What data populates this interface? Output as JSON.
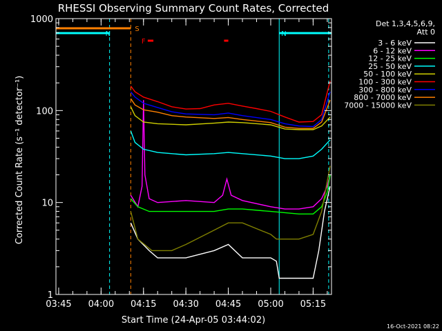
{
  "chart_data": {
    "type": "line",
    "title": "RHESSI Observing Summary Count Rates, Corrected",
    "xlabel": "Start Time (24-Apr-05 03:44:02)",
    "ylabel": "Corrected Count Rate (s⁻¹ detector⁻¹)",
    "y_scale": "log",
    "ylim": [
      1,
      1000
    ],
    "xlim": [
      "03:44:02",
      "05:21:30"
    ],
    "x_ticks": [
      "03:45",
      "04:00",
      "04:15",
      "04:30",
      "04:45",
      "05:00",
      "05:15"
    ],
    "y_ticks": [
      "1",
      "10",
      "100",
      "1000"
    ],
    "legend_position": "top-right",
    "legend_header": [
      "Det 1,3,4,5,6,9,",
      "Att 0"
    ],
    "flags": [
      {
        "label": "S",
        "color": "#ff8000",
        "start": "03:44:02",
        "end": "04:10:30"
      },
      {
        "label": "N",
        "color": "#00ffff",
        "start": "03:44:02",
        "end": "04:03:00"
      },
      {
        "label": "N",
        "color": "#00ffff",
        "start": "05:03:00",
        "end": "05:21:30"
      },
      {
        "label": "F",
        "color": "#ff0000",
        "start": "04:16:30",
        "end": "04:18:30"
      },
      {
        "label": "",
        "color": "#ff0000",
        "start": "04:43:30",
        "end": "04:45:00"
      }
    ],
    "vlines": [
      {
        "time": "04:03:00",
        "color": "#00ffff",
        "style": "dashed"
      },
      {
        "time": "04:10:30",
        "color": "#ff8000",
        "style": "dashed"
      },
      {
        "time": "05:03:00",
        "color": "#00ffff",
        "style": "solid"
      },
      {
        "time": "05:20:30",
        "color": "#00ffff",
        "style": "dashed"
      }
    ],
    "series": [
      {
        "name": "3 - 6 keV",
        "color": "#ffffff",
        "points": [
          [
            "04:10:30",
            6
          ],
          [
            "04:13:00",
            4
          ],
          [
            "04:17:00",
            3
          ],
          [
            "04:20:00",
            2.5
          ],
          [
            "04:30:00",
            2.5
          ],
          [
            "04:40:00",
            3
          ],
          [
            "04:45:00",
            3.5
          ],
          [
            "04:50:00",
            2.5
          ],
          [
            "05:00:00",
            2.5
          ],
          [
            "05:02:00",
            2.3
          ],
          [
            "05:03:00",
            1.5
          ],
          [
            "05:10:00",
            1.5
          ],
          [
            "05:15:00",
            1.5
          ],
          [
            "05:17:00",
            3
          ],
          [
            "05:19:00",
            8
          ],
          [
            "05:21:00",
            15
          ]
        ]
      },
      {
        "name": "6 - 12 keV",
        "color": "#ff00ff",
        "points": [
          [
            "04:10:30",
            12
          ],
          [
            "04:13:00",
            9
          ],
          [
            "04:14:30",
            15
          ],
          [
            "04:15:00",
            130
          ],
          [
            "04:15:30",
            20
          ],
          [
            "04:17:00",
            11
          ],
          [
            "04:20:00",
            10
          ],
          [
            "04:30:00",
            10.5
          ],
          [
            "04:40:00",
            10
          ],
          [
            "04:43:00",
            12
          ],
          [
            "04:44:30",
            18
          ],
          [
            "04:46:00",
            12
          ],
          [
            "04:50:00",
            10.5
          ],
          [
            "05:00:00",
            9
          ],
          [
            "05:05:00",
            8.5
          ],
          [
            "05:10:00",
            8.5
          ],
          [
            "05:15:00",
            9
          ],
          [
            "05:18:00",
            11
          ],
          [
            "05:20:00",
            15
          ],
          [
            "05:21:00",
            20
          ]
        ]
      },
      {
        "name": "12 - 25 keV",
        "color": "#00ff00",
        "points": [
          [
            "04:10:30",
            11
          ],
          [
            "04:13:00",
            9
          ],
          [
            "04:17:00",
            8
          ],
          [
            "04:25:00",
            8
          ],
          [
            "04:30:00",
            8
          ],
          [
            "04:40:00",
            8
          ],
          [
            "04:45:00",
            8.5
          ],
          [
            "04:50:00",
            8.5
          ],
          [
            "05:00:00",
            8
          ],
          [
            "05:10:00",
            7.5
          ],
          [
            "05:15:00",
            7.5
          ],
          [
            "05:18:00",
            9
          ],
          [
            "05:20:00",
            13
          ],
          [
            "05:21:00",
            20
          ]
        ]
      },
      {
        "name": "25 - 50 keV",
        "color": "#00ffff",
        "points": [
          [
            "04:10:30",
            60
          ],
          [
            "04:12:00",
            45
          ],
          [
            "04:15:00",
            38
          ],
          [
            "04:20:00",
            35
          ],
          [
            "04:30:00",
            33
          ],
          [
            "04:40:00",
            34
          ],
          [
            "04:45:00",
            35
          ],
          [
            "04:50:00",
            34
          ],
          [
            "05:00:00",
            32
          ],
          [
            "05:05:00",
            30
          ],
          [
            "05:10:00",
            30
          ],
          [
            "05:15:00",
            32
          ],
          [
            "05:18:00",
            38
          ],
          [
            "05:21:00",
            48
          ]
        ]
      },
      {
        "name": "50 - 100 keV",
        "color": "#d0d000",
        "points": [
          [
            "04:10:30",
            110
          ],
          [
            "04:12:00",
            88
          ],
          [
            "04:15:00",
            75
          ],
          [
            "04:20:00",
            72
          ],
          [
            "04:30:00",
            70
          ],
          [
            "04:40:00",
            73
          ],
          [
            "04:45:00",
            75
          ],
          [
            "04:50:00",
            74
          ],
          [
            "05:00:00",
            70
          ],
          [
            "05:05:00",
            63
          ],
          [
            "05:10:00",
            62
          ],
          [
            "05:15:00",
            62
          ],
          [
            "05:18:00",
            68
          ],
          [
            "05:21:00",
            85
          ]
        ]
      },
      {
        "name": "100 - 300 keV",
        "color": "#ff0000",
        "points": [
          [
            "04:10:30",
            185
          ],
          [
            "04:12:00",
            160
          ],
          [
            "04:15:00",
            140
          ],
          [
            "04:20:00",
            125
          ],
          [
            "04:25:00",
            110
          ],
          [
            "04:30:00",
            104
          ],
          [
            "04:35:00",
            105
          ],
          [
            "04:40:00",
            115
          ],
          [
            "04:45:00",
            120
          ],
          [
            "04:50:00",
            112
          ],
          [
            "04:55:00",
            105
          ],
          [
            "05:00:00",
            98
          ],
          [
            "05:05:00",
            85
          ],
          [
            "05:10:00",
            75
          ],
          [
            "05:15:00",
            76
          ],
          [
            "05:18:00",
            90
          ],
          [
            "05:21:00",
            210
          ]
        ]
      },
      {
        "name": "300 - 800 keV",
        "color": "#0000ff",
        "points": [
          [
            "04:10:30",
            160
          ],
          [
            "04:12:00",
            140
          ],
          [
            "04:15:00",
            120
          ],
          [
            "04:20:00",
            108
          ],
          [
            "04:25:00",
            97
          ],
          [
            "04:30:00",
            92
          ],
          [
            "04:40:00",
            90
          ],
          [
            "04:45:00",
            94
          ],
          [
            "04:50:00",
            88
          ],
          [
            "05:00:00",
            80
          ],
          [
            "05:05:00",
            72
          ],
          [
            "05:10:00",
            68
          ],
          [
            "05:15:00",
            67
          ],
          [
            "05:18:00",
            80
          ],
          [
            "05:21:00",
            160
          ]
        ]
      },
      {
        "name": "800 - 7000 keV",
        "color": "#ff8000",
        "points": [
          [
            "04:10:30",
            135
          ],
          [
            "04:12:00",
            115
          ],
          [
            "04:15:00",
            102
          ],
          [
            "04:20:00",
            96
          ],
          [
            "04:25:00",
            88
          ],
          [
            "04:30:00",
            85
          ],
          [
            "04:40:00",
            82
          ],
          [
            "04:45:00",
            84
          ],
          [
            "04:50:00",
            80
          ],
          [
            "05:00:00",
            74
          ],
          [
            "05:05:00",
            66
          ],
          [
            "05:10:00",
            64
          ],
          [
            "05:15:00",
            64
          ],
          [
            "05:18:00",
            75
          ],
          [
            "05:21:00",
            130
          ]
        ]
      },
      {
        "name": "7000 - 15000 keV",
        "color": "#808000",
        "points": [
          [
            "04:10:30",
            8
          ],
          [
            "04:13:00",
            4
          ],
          [
            "04:18:00",
            3
          ],
          [
            "04:25:00",
            3
          ],
          [
            "04:30:00",
            3.5
          ],
          [
            "04:40:00",
            5
          ],
          [
            "04:45:00",
            6
          ],
          [
            "04:50:00",
            6
          ],
          [
            "05:00:00",
            4.5
          ],
          [
            "05:02:00",
            4
          ],
          [
            "05:03:00",
            4
          ],
          [
            "05:10:00",
            4
          ],
          [
            "05:15:00",
            4.5
          ],
          [
            "05:18:00",
            8
          ],
          [
            "05:21:00",
            25
          ]
        ]
      }
    ]
  },
  "footer_timestamp": "16-Oct-2021 08:22"
}
